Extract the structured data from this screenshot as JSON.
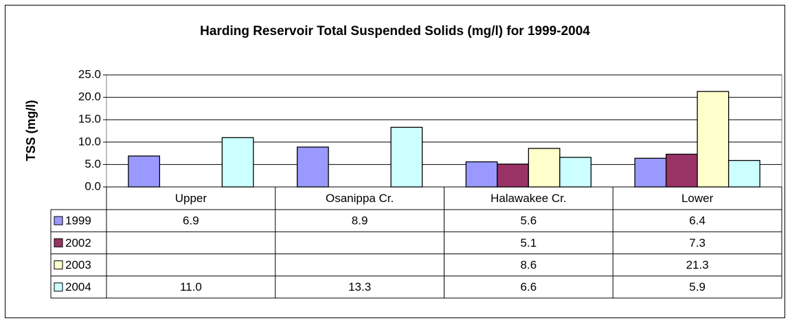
{
  "chart_data": {
    "type": "bar",
    "title": "Harding Reservoir Total Suspended Solids (mg/l) for 1999-2004",
    "y_label": "TSS (mg/l)",
    "categories": [
      "Upper",
      "Osanippa Cr.",
      "Halawakee Cr.",
      "Lower"
    ],
    "series": [
      {
        "name": "1999",
        "color": "#9999ff",
        "values": [
          6.9,
          8.9,
          5.6,
          6.4
        ],
        "value_labels": [
          "6.9",
          "8.9",
          "5.6",
          "6.4"
        ]
      },
      {
        "name": "2002",
        "color": "#993366",
        "values": [
          null,
          null,
          5.1,
          7.3
        ],
        "value_labels": [
          null,
          null,
          "5.1",
          "7.3"
        ]
      },
      {
        "name": "2003",
        "color": "#ffffcc",
        "values": [
          null,
          null,
          8.6,
          21.3
        ],
        "value_labels": [
          null,
          null,
          "8.6",
          "21.3"
        ]
      },
      {
        "name": "2004",
        "color": "#ccffff",
        "values": [
          11.0,
          13.3,
          6.6,
          5.9
        ],
        "value_labels": [
          "11.0",
          "13.3",
          "6.6",
          "5.9"
        ]
      }
    ],
    "ylim": [
      0,
      25
    ],
    "yticks": [
      {
        "value": 0,
        "label": "0.0"
      },
      {
        "value": 5,
        "label": "5.0"
      },
      {
        "value": 10,
        "label": "10.0"
      },
      {
        "value": 15,
        "label": "15.0"
      },
      {
        "value": 20,
        "label": "20.0"
      },
      {
        "value": 25,
        "label": "25.0"
      }
    ],
    "grid": true
  }
}
